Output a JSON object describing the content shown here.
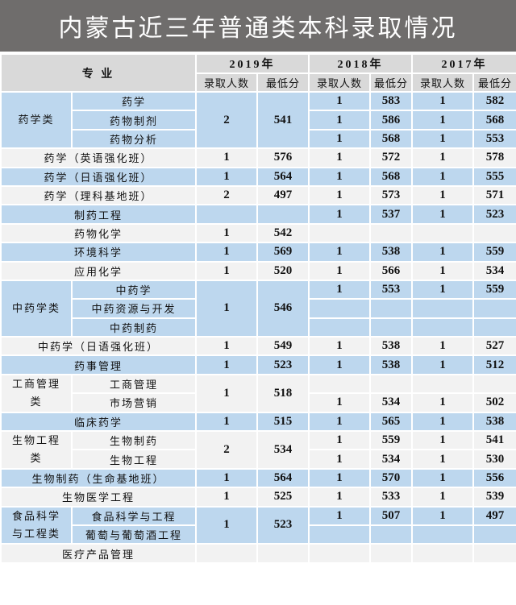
{
  "title": "内蒙古近三年普通类本科录取情况",
  "header": {
    "major": "专  业",
    "years": [
      "2019年",
      "2018年",
      "2017年"
    ],
    "count_label": "录取人数",
    "min_label": "最低分"
  },
  "colors": {
    "title_bg": "#6f6d6c",
    "header_bg": "#d9d9d9",
    "blue_row": "#bdd7ee",
    "gray_row": "#f2f2f2"
  },
  "groups": [
    {
      "name": "药学类",
      "shade": "blue",
      "y2019": [
        "2",
        "541"
      ],
      "subs": [
        {
          "name": "药学",
          "y2018": [
            "1",
            "583"
          ],
          "y2017": [
            "1",
            "582"
          ]
        },
        {
          "name": "药物制剂",
          "y2018": [
            "1",
            "586"
          ],
          "y2017": [
            "1",
            "568"
          ]
        },
        {
          "name": "药物分析",
          "y2018": [
            "1",
            "568"
          ],
          "y2017": [
            "1",
            "553"
          ]
        }
      ]
    },
    {
      "name": "药学（英语强化班）",
      "shade": "gray",
      "y2019": [
        "1",
        "576"
      ],
      "y2018": [
        "1",
        "572"
      ],
      "y2017": [
        "1",
        "578"
      ]
    },
    {
      "name": "药学（日语强化班）",
      "shade": "blue",
      "y2019": [
        "1",
        "564"
      ],
      "y2018": [
        "1",
        "568"
      ],
      "y2017": [
        "1",
        "555"
      ]
    },
    {
      "name": "药学（理科基地班）",
      "shade": "gray",
      "y2019": [
        "2",
        "497"
      ],
      "y2018": [
        "1",
        "573"
      ],
      "y2017": [
        "1",
        "571"
      ]
    },
    {
      "name": "制药工程",
      "shade": "blue",
      "y2019": [
        "",
        ""
      ],
      "y2018": [
        "1",
        "537"
      ],
      "y2017": [
        "1",
        "523"
      ]
    },
    {
      "name": "药物化学",
      "shade": "gray",
      "y2019": [
        "1",
        "542"
      ],
      "y2018": [
        "",
        ""
      ],
      "y2017": [
        "",
        ""
      ]
    },
    {
      "name": "环境科学",
      "shade": "blue",
      "y2019": [
        "1",
        "569"
      ],
      "y2018": [
        "1",
        "538"
      ],
      "y2017": [
        "1",
        "559"
      ]
    },
    {
      "name": "应用化学",
      "shade": "gray",
      "y2019": [
        "1",
        "520"
      ],
      "y2018": [
        "1",
        "566"
      ],
      "y2017": [
        "1",
        "534"
      ]
    },
    {
      "name": "中药学类",
      "shade": "blue",
      "y2019": [
        "1",
        "546"
      ],
      "subs": [
        {
          "name": "中药学",
          "y2018": [
            "1",
            "553"
          ],
          "y2017": [
            "1",
            "559"
          ]
        },
        {
          "name": "中药资源与开发",
          "y2018": [
            "",
            ""
          ],
          "y2017": [
            "",
            ""
          ]
        },
        {
          "name": "中药制药",
          "y2018": [
            "",
            ""
          ],
          "y2017": [
            "",
            ""
          ]
        }
      ]
    },
    {
      "name": "中药学（日语强化班）",
      "shade": "gray",
      "y2019": [
        "1",
        "549"
      ],
      "y2018": [
        "1",
        "538"
      ],
      "y2017": [
        "1",
        "527"
      ]
    },
    {
      "name": "药事管理",
      "shade": "blue",
      "y2019": [
        "1",
        "523"
      ],
      "y2018": [
        "1",
        "538"
      ],
      "y2017": [
        "1",
        "512"
      ]
    },
    {
      "name": "工商管理类",
      "shade": "gray",
      "y2019": [
        "1",
        "518"
      ],
      "subs": [
        {
          "name": "工商管理",
          "y2018": [
            "",
            ""
          ],
          "y2017": [
            "",
            ""
          ]
        },
        {
          "name": "市场营销",
          "y2018": [
            "1",
            "534"
          ],
          "y2017": [
            "1",
            "502"
          ]
        }
      ]
    },
    {
      "name": "临床药学",
      "shade": "blue",
      "y2019": [
        "1",
        "515"
      ],
      "y2018": [
        "1",
        "565"
      ],
      "y2017": [
        "1",
        "538"
      ]
    },
    {
      "name": "生物工程类",
      "shade": "gray",
      "y2019": [
        "2",
        "534"
      ],
      "subs": [
        {
          "name": "生物制药",
          "y2018": [
            "1",
            "559"
          ],
          "y2017": [
            "1",
            "541"
          ]
        },
        {
          "name": "生物工程",
          "y2018": [
            "1",
            "534"
          ],
          "y2017": [
            "1",
            "530"
          ]
        }
      ]
    },
    {
      "name": "生物制药（生命基地班）",
      "shade": "blue",
      "y2019": [
        "1",
        "564"
      ],
      "y2018": [
        "1",
        "570"
      ],
      "y2017": [
        "1",
        "556"
      ]
    },
    {
      "name": "生物医学工程",
      "shade": "gray",
      "y2019": [
        "1",
        "525"
      ],
      "y2018": [
        "1",
        "533"
      ],
      "y2017": [
        "1",
        "539"
      ]
    },
    {
      "name": "食品科学与工程类",
      "shade": "blue",
      "y2019": [
        "1",
        "523"
      ],
      "subs": [
        {
          "name": "食品科学与工程",
          "y2018": [
            "1",
            "507"
          ],
          "y2017": [
            "1",
            "497"
          ]
        },
        {
          "name": "葡萄与葡萄酒工程",
          "y2018": [
            "",
            ""
          ],
          "y2017": [
            "",
            ""
          ]
        }
      ]
    },
    {
      "name": "医疗产品管理",
      "shade": "gray",
      "y2019": [
        "",
        ""
      ],
      "y2018": [
        "",
        ""
      ],
      "y2017": [
        "",
        ""
      ]
    }
  ]
}
